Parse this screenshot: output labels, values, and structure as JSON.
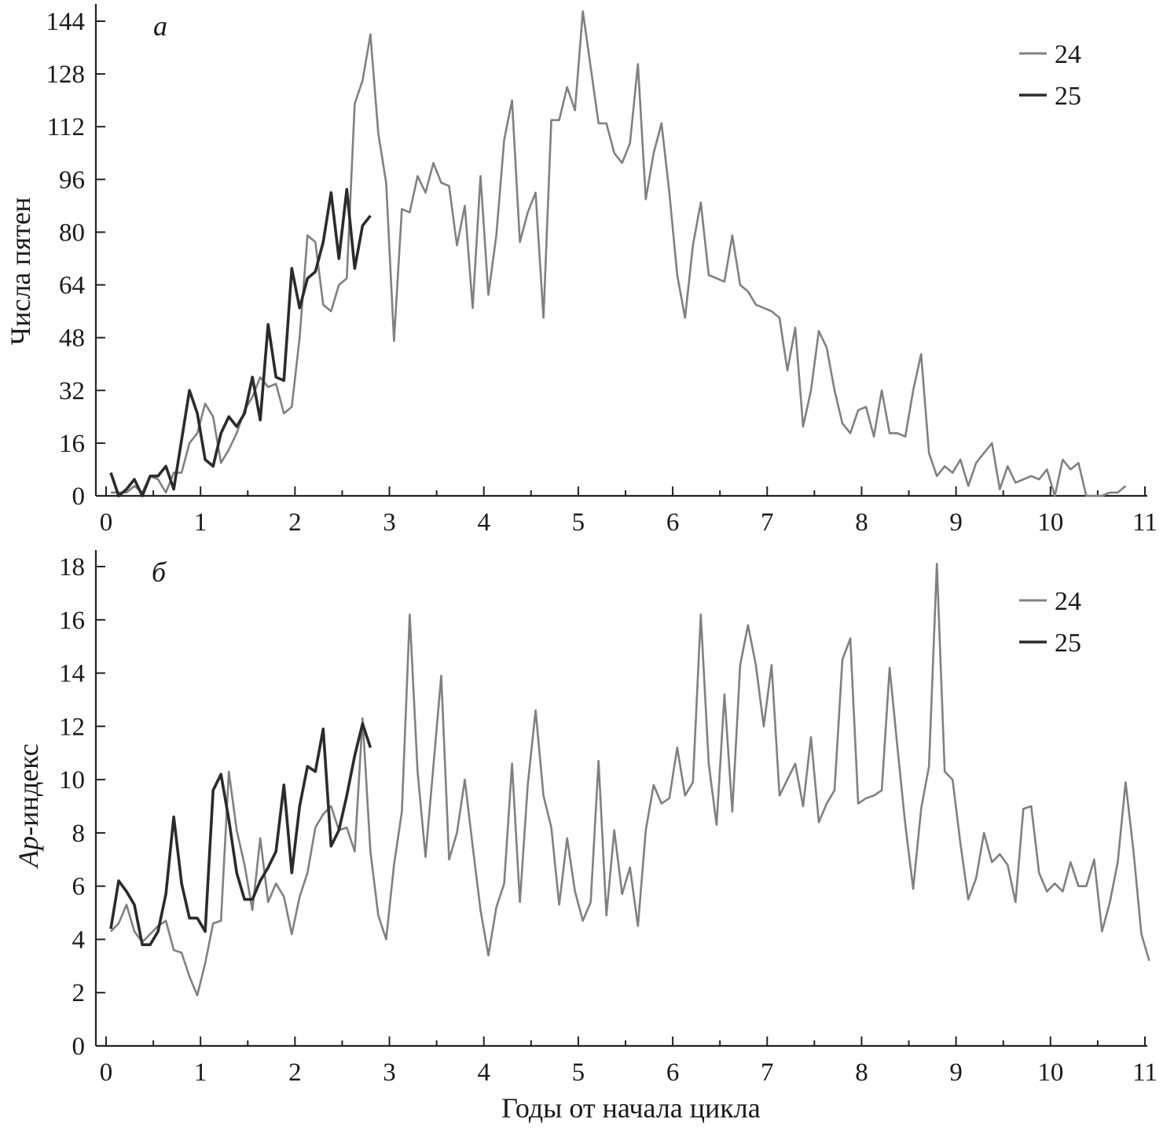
{
  "x_axis_title": "Годы от начала цикла",
  "chart_data": [
    {
      "type": "line",
      "panel_letter": "а",
      "ylabel": "Числа пятен",
      "xlabel": "",
      "xlim": [
        0,
        11
      ],
      "ylim": [
        0,
        144
      ],
      "xticks": [
        0,
        1,
        2,
        3,
        4,
        5,
        6,
        7,
        8,
        9,
        10,
        11
      ],
      "yticks": [
        0,
        16,
        32,
        48,
        64,
        80,
        96,
        112,
        128,
        144
      ],
      "legend_position": "top-right",
      "series": [
        {
          "name": "24",
          "color": "#808080",
          "x_step": 0.0833,
          "x_start": 0.05,
          "values": [
            1,
            1,
            1,
            3,
            1,
            6,
            5,
            1,
            7,
            7,
            16,
            19,
            28,
            24,
            10,
            14,
            19,
            26,
            30,
            36,
            33,
            34,
            25,
            27,
            48,
            79,
            77,
            58,
            56,
            64,
            66,
            119,
            126,
            140,
            110,
            95,
            47,
            87,
            86,
            97,
            92,
            101,
            95,
            94,
            76,
            88,
            57,
            97,
            61,
            79,
            108,
            120,
            77,
            86,
            92,
            54,
            114,
            114,
            124,
            117,
            147,
            130,
            113,
            113,
            104,
            101,
            107,
            131,
            90,
            104,
            113,
            92,
            67,
            54,
            76,
            89,
            67,
            66,
            65,
            79,
            64,
            62,
            58,
            57,
            56,
            54,
            38,
            51,
            21,
            32,
            50,
            45,
            32,
            22,
            19,
            26,
            27,
            18,
            32,
            19,
            19,
            18,
            32,
            43,
            13,
            6,
            9,
            7,
            11,
            3,
            10,
            13,
            16,
            2,
            9,
            4,
            5,
            6,
            5,
            8,
            0,
            11,
            8,
            10,
            0,
            0,
            0,
            1,
            1,
            3
          ]
        },
        {
          "name": "25",
          "color": "#2b2b2b",
          "x_step": 0.0833,
          "x_start": 0.05,
          "values": [
            7,
            0,
            2,
            5,
            0,
            6,
            6,
            9,
            2,
            17,
            32,
            25,
            11,
            9,
            19,
            24,
            21,
            25,
            36,
            23,
            52,
            36,
            35,
            69,
            57,
            66,
            68,
            77,
            92,
            72,
            93,
            69,
            82,
            85
          ]
        }
      ]
    },
    {
      "type": "line",
      "panel_letter": "б",
      "ylabel": "Ap-индекс",
      "ylabel_italic": "Ap",
      "ylabel_rest": "-индекс",
      "xlabel": "Годы от начала цикла",
      "xlim": [
        0,
        11
      ],
      "ylim": [
        0,
        18
      ],
      "xticks": [
        0,
        1,
        2,
        3,
        4,
        5,
        6,
        7,
        8,
        9,
        10,
        11
      ],
      "yticks": [
        0,
        2,
        4,
        6,
        8,
        10,
        12,
        14,
        16,
        18
      ],
      "legend_position": "top-right",
      "series": [
        {
          "name": "24",
          "color": "#808080",
          "x_step": 0.0833,
          "x_start": 0.05,
          "values": [
            4.3,
            4.6,
            5.3,
            4.3,
            3.9,
            4.2,
            4.5,
            4.7,
            3.6,
            3.5,
            2.6,
            1.9,
            3.1,
            4.6,
            4.7,
            10.3,
            8.1,
            6.8,
            5.1,
            7.8,
            5.4,
            6.1,
            5.6,
            4.2,
            5.6,
            6.5,
            8.2,
            8.7,
            9.0,
            8.1,
            8.2,
            7.3,
            12.3,
            7.3,
            4.9,
            4.0,
            6.8,
            8.8,
            16.2,
            10.3,
            7.1,
            10.5,
            13.9,
            7.0,
            8.0,
            10.0,
            7.5,
            5.1,
            3.4,
            5.2,
            6.1,
            10.6,
            5.4,
            9.8,
            12.6,
            9.4,
            8.2,
            5.3,
            7.8,
            5.8,
            4.7,
            5.4,
            10.7,
            4.9,
            8.1,
            5.7,
            6.7,
            4.5,
            8.1,
            9.8,
            9.1,
            9.3,
            11.2,
            9.4,
            9.9,
            16.2,
            10.6,
            8.3,
            13.2,
            8.8,
            14.3,
            15.8,
            14.3,
            12.0,
            14.3,
            9.4,
            10.0,
            10.6,
            9.0,
            11.6,
            8.4,
            9.1,
            9.6,
            14.5,
            15.3,
            9.1,
            9.3,
            9.4,
            9.6,
            14.2,
            11.2,
            8.3,
            5.9,
            8.9,
            10.5,
            18.1,
            10.3,
            10.0,
            7.6,
            5.5,
            6.3,
            8.0,
            6.9,
            7.2,
            6.8,
            5.4,
            8.9,
            9.0,
            6.5,
            5.8,
            6.1,
            5.8,
            6.9,
            6.0,
            6.0,
            7.0,
            4.3,
            5.4,
            6.9,
            9.9,
            7.3,
            4.2,
            3.2
          ]
        },
        {
          "name": "25",
          "color": "#2b2b2b",
          "x_step": 0.0833,
          "x_start": 0.05,
          "values": [
            4.4,
            6.2,
            5.8,
            5.3,
            3.8,
            3.8,
            4.3,
            5.7,
            8.6,
            6.1,
            4.8,
            4.8,
            4.3,
            9.6,
            10.2,
            8.5,
            6.5,
            5.5,
            5.5,
            6.2,
            6.7,
            7.3,
            9.8,
            6.5,
            9.0,
            10.5,
            10.3,
            11.9,
            7.5,
            8.1,
            9.4,
            10.9,
            12.1,
            11.2
          ]
        }
      ]
    }
  ]
}
